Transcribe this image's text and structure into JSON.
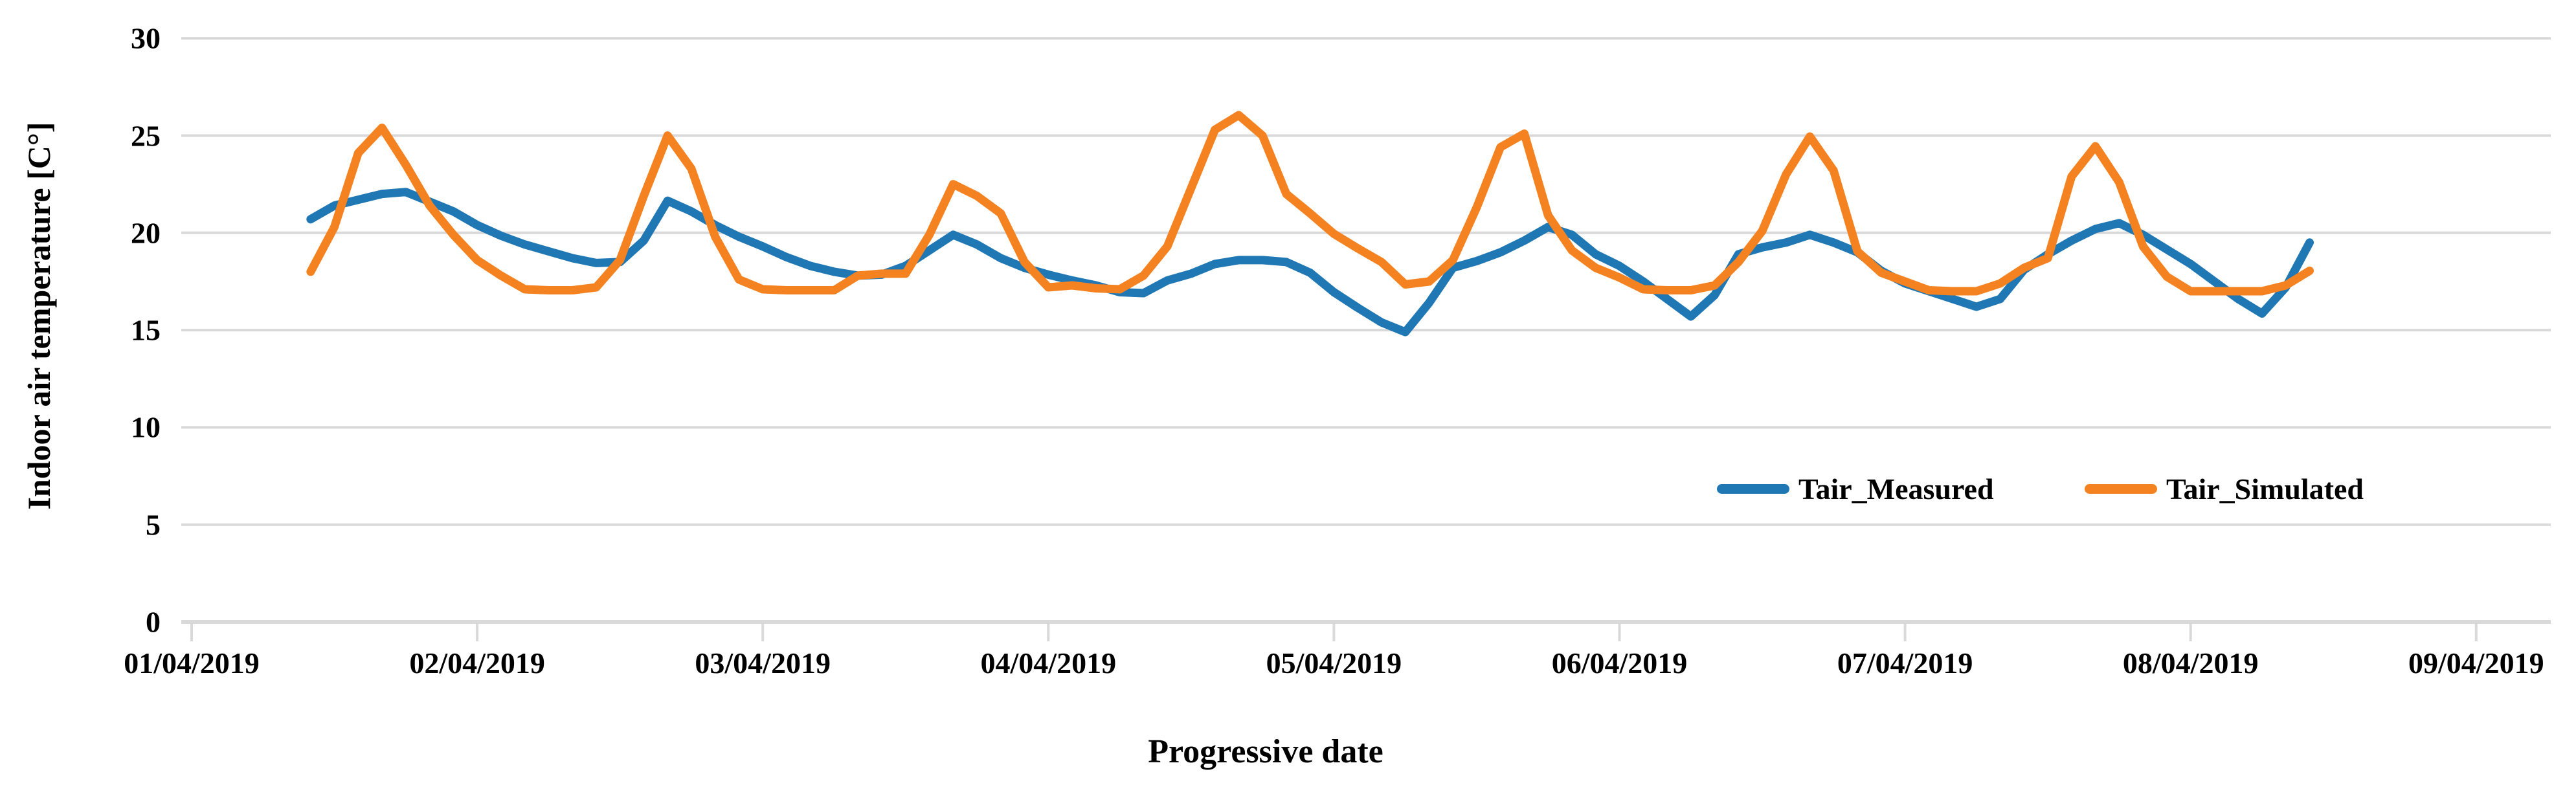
{
  "chart_data": {
    "type": "line",
    "title": "",
    "ylabel": "Indoor air temperature [C°]",
    "xlabel": "Progressive date",
    "y_ticks": [
      0,
      5,
      10,
      15,
      20,
      25,
      30
    ],
    "ylim": [
      0,
      30
    ],
    "x_tick_labels": [
      "01/04/2019",
      "02/04/2019",
      "03/04/2019",
      "04/04/2019",
      "05/04/2019",
      "06/04/2019",
      "07/04/2019",
      "08/04/2019",
      "09/04/2019"
    ],
    "grid": "horizontal",
    "gridline_color": "#d9d9d9",
    "legend_position": "inside-lower-right",
    "time_base": {
      "start_date": "01/04/2019",
      "start_hour": 10,
      "step_hours": 2
    },
    "series": [
      {
        "name": "Tair_Measured",
        "color": "#1f77b4",
        "values": [
          20.7,
          21.4,
          21.7,
          22.0,
          22.1,
          21.6,
          21.1,
          20.4,
          19.85,
          19.4,
          19.05,
          18.7,
          18.45,
          18.5,
          19.6,
          21.65,
          21.1,
          20.4,
          19.8,
          19.3,
          18.75,
          18.3,
          18.0,
          17.8,
          17.85,
          18.3,
          19.1,
          19.9,
          19.4,
          18.7,
          18.2,
          17.85,
          17.55,
          17.3,
          16.95,
          16.9,
          17.55,
          17.9,
          18.4,
          18.6,
          18.6,
          18.5,
          17.95,
          16.95,
          16.15,
          15.4,
          14.9,
          16.4,
          18.2,
          18.55,
          19.0,
          19.6,
          20.3,
          19.9,
          18.9,
          18.3,
          17.5,
          16.6,
          15.7,
          16.8,
          18.9,
          19.25,
          19.5,
          19.9,
          19.5,
          19.0,
          18.05,
          17.4,
          17.0,
          16.6,
          16.2,
          16.6,
          18.1,
          18.9,
          19.6,
          20.2,
          20.5,
          19.9,
          19.15,
          18.4,
          17.5,
          16.6,
          15.85,
          17.2,
          19.5
        ]
      },
      {
        "name": "Tair_Simulated",
        "color": "#f58220",
        "values": [
          18.0,
          20.3,
          24.1,
          25.4,
          23.5,
          21.4,
          19.9,
          18.6,
          17.8,
          17.1,
          17.05,
          17.05,
          17.2,
          18.6,
          21.9,
          25.0,
          23.3,
          19.8,
          17.6,
          17.1,
          17.05,
          17.05,
          17.05,
          17.8,
          17.9,
          17.9,
          19.9,
          22.5,
          21.9,
          21.0,
          18.5,
          17.2,
          17.3,
          17.15,
          17.1,
          17.8,
          19.3,
          22.3,
          25.3,
          26.05,
          25.0,
          22.0,
          21.0,
          19.95,
          19.2,
          18.5,
          17.35,
          17.5,
          18.6,
          21.3,
          24.4,
          25.1,
          20.9,
          19.1,
          18.2,
          17.7,
          17.1,
          17.05,
          17.05,
          17.3,
          18.5,
          20.1,
          23.0,
          24.95,
          23.2,
          19.05,
          17.95,
          17.5,
          17.05,
          17.0,
          17.0,
          17.4,
          18.2,
          18.7,
          22.9,
          24.45,
          22.6,
          19.3,
          17.75,
          17.0,
          17.0,
          17.0,
          17.0,
          17.3,
          18.05
        ]
      }
    ]
  }
}
